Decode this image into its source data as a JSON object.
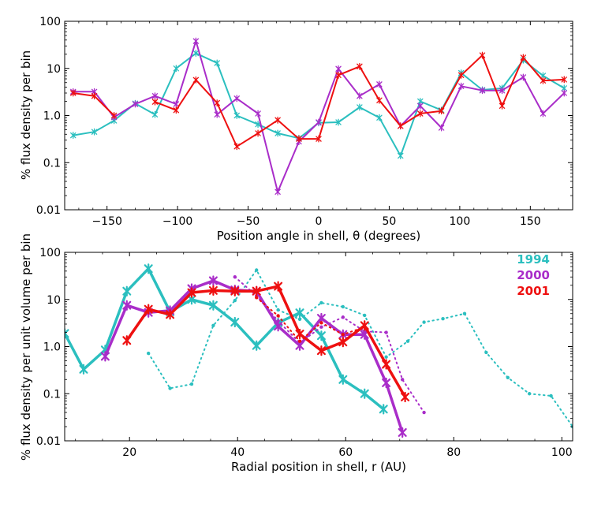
{
  "chart_data": [
    {
      "type": "line",
      "xlabel": "Position angle in shell, θ (degrees)",
      "ylabel": "% flux density per bin",
      "xlim": [
        -180,
        180
      ],
      "ylim": [
        0.01,
        100
      ],
      "yscale": "log",
      "grid": false,
      "xticks": [
        -150,
        -100,
        -50,
        0,
        50,
        100,
        150
      ],
      "xtick_labels": [
        "−150",
        "−100",
        "−50",
        "0",
        "50",
        "100",
        "150"
      ],
      "yticks": [
        0.01,
        0.1,
        1,
        10,
        100
      ],
      "ytick_labels": [
        "0.01",
        "0.1",
        "1.0",
        "10",
        "100"
      ],
      "series": [
        {
          "color": "#2bbfbf",
          "x": [
            -174,
            -159,
            -145,
            -130,
            -116,
            -101,
            -87,
            -72,
            -58,
            -43,
            -29,
            -14,
            0,
            14,
            29,
            43,
            58,
            72,
            87,
            101,
            116,
            130,
            145,
            159,
            174
          ],
          "y": [
            0.38,
            0.45,
            0.78,
            1.8,
            1.05,
            10,
            21,
            13,
            1.0,
            0.65,
            0.42,
            0.33,
            0.7,
            0.72,
            1.5,
            0.9,
            0.14,
            2.0,
            1.3,
            8.0,
            3.5,
            3.8,
            15,
            7,
            3.8
          ]
        },
        {
          "color": "#a92dc9",
          "x": [
            -174,
            -159,
            -145,
            -130,
            -116,
            -101,
            -87,
            -72,
            -58,
            -43,
            -29,
            -14,
            0,
            14,
            29,
            43,
            58,
            72,
            87,
            101,
            116,
            130,
            145,
            159,
            174
          ],
          "y": [
            3.2,
            3.2,
            0.92,
            1.75,
            2.6,
            1.75,
            38,
            1.05,
            2.3,
            1.1,
            0.024,
            0.28,
            0.72,
            9.8,
            2.6,
            4.6,
            0.6,
            1.6,
            0.55,
            4.2,
            3.4,
            3.4,
            6.5,
            1.1,
            3.0
          ]
        },
        {
          "color": "#ee1010",
          "x": [
            -174,
            -159,
            -145,
            null,
            -116,
            -101,
            -87,
            -72,
            -58,
            -43,
            -29,
            -14,
            0,
            14,
            29,
            43,
            58,
            72,
            87,
            101,
            116,
            130,
            145,
            159,
            174
          ],
          "y": [
            3.0,
            2.6,
            1.0,
            null,
            1.95,
            1.3,
            5.7,
            1.85,
            0.22,
            0.42,
            0.8,
            0.32,
            0.32,
            7.2,
            11,
            2.1,
            0.6,
            1.1,
            1.25,
            7.2,
            19,
            1.6,
            17,
            5.5,
            5.8
          ]
        }
      ]
    },
    {
      "type": "line",
      "xlabel": "Radial position in shell, r (AU)",
      "ylabel": "% flux density per unit volume per bin",
      "xlim": [
        8,
        102
      ],
      "ylim": [
        0.01,
        100
      ],
      "yscale": "log",
      "grid": false,
      "xticks": [
        20,
        40,
        60,
        80,
        100
      ],
      "xtick_labels": [
        "20",
        "40",
        "60",
        "80",
        "100"
      ],
      "yticks": [
        0.01,
        0.1,
        1,
        10,
        100
      ],
      "ytick_labels": [
        "0.01",
        "0.1",
        "1.0",
        "10",
        "100"
      ],
      "legend": {
        "placement": "top-right",
        "entries": [
          {
            "label": "1994",
            "color": "#2bbfbf"
          },
          {
            "label": "2000",
            "color": "#a92dc9"
          },
          {
            "label": "2001",
            "color": "#ee1010"
          }
        ]
      },
      "series": [
        {
          "color": "#2bbfbf",
          "style": "solid",
          "x": [
            8,
            11.5,
            15.5,
            19.5,
            23.5,
            27.5,
            31.5,
            35.5,
            39.5,
            43.5,
            47.5,
            51.5,
            55.5,
            59.5,
            63.5,
            67
          ],
          "y": [
            1.9,
            0.33,
            0.85,
            15,
            45,
            5.5,
            10,
            7.5,
            3.3,
            1.05,
            3.2,
            5.2,
            1.7,
            0.2,
            0.1,
            0.047
          ]
        },
        {
          "color": "#2bbfbf",
          "style": "dotted",
          "x": [
            23.5,
            27.5,
            31.5,
            35.5,
            39.5,
            43.5,
            47.5,
            51.5,
            55.5,
            59.5,
            63.5,
            67.5,
            71.5,
            74.5,
            78,
            82,
            86,
            90,
            94,
            98,
            102
          ],
          "y": [
            0.72,
            0.13,
            0.16,
            2.8,
            9.5,
            42,
            6.0,
            3.8,
            8.5,
            7.0,
            4.6,
            0.6,
            1.3,
            3.3,
            3.9,
            5.0,
            0.75,
            0.22,
            0.1,
            0.09,
            0.02
          ]
        },
        {
          "color": "#a92dc9",
          "style": "solid",
          "x": [
            15.5,
            19.5,
            23.5,
            27.5,
            31.5,
            35.5,
            39.5,
            43.5,
            47.5,
            51.5,
            55.5,
            59.5,
            63.5,
            67.5,
            70.5
          ],
          "y": [
            0.62,
            7.5,
            5.3,
            5.8,
            17,
            25,
            16,
            15,
            2.7,
            1.05,
            4.0,
            1.8,
            1.8,
            0.17,
            0.015
          ]
        },
        {
          "color": "#a92dc9",
          "style": "dotted",
          "x": [
            39.5,
            43.5,
            47.5,
            51.5,
            55.5,
            59.5,
            63.5,
            67.5,
            70.5,
            74.5
          ],
          "y": [
            30,
            12,
            3.5,
            1.2,
            2.6,
            4.2,
            2.1,
            2.0,
            0.2,
            0.04
          ]
        },
        {
          "color": "#ee1010",
          "style": "solid",
          "x": [
            19.5,
            23.5,
            27.5,
            31.5,
            35.5,
            39.5,
            43.5,
            47.5,
            51.5,
            55.5,
            59.5,
            63.5,
            67.5,
            71
          ],
          "y": [
            1.35,
            6.2,
            4.8,
            14,
            15.5,
            15,
            15,
            19,
            1.85,
            0.82,
            1.25,
            2.8,
            0.42,
            0.085
          ]
        },
        {
          "color": "#ee1010",
          "style": "dotted",
          "x": [
            43.5,
            47.5,
            51.5,
            55.5,
            59.5,
            63.5
          ],
          "y": [
            11,
            4.5,
            1.3,
            3.2,
            1.8,
            2.6
          ]
        }
      ]
    }
  ]
}
